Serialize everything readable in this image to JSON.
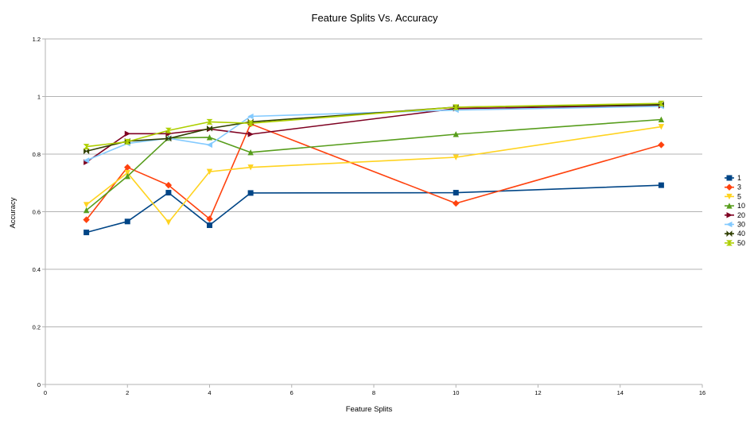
{
  "chart_data": {
    "type": "line",
    "title": "Feature Splits Vs. Accuracy",
    "xlabel": "Feature Splits",
    "ylabel": "Accuracy",
    "xlim": [
      0,
      16
    ],
    "ylim": [
      0,
      1.2
    ],
    "x_ticks": [
      0,
      2,
      4,
      6,
      8,
      10,
      12,
      14,
      16
    ],
    "y_ticks": [
      0,
      0.2,
      0.4,
      0.6,
      0.8,
      1,
      1.2
    ],
    "grid": "horizontal",
    "legend_position": "right",
    "x": [
      1,
      2,
      3,
      4,
      5,
      10,
      15
    ],
    "series": [
      {
        "name": "1",
        "color": "#004586",
        "marker": "square",
        "values": [
          0.528,
          0.566,
          0.666,
          0.553,
          0.665,
          0.666,
          0.692
        ]
      },
      {
        "name": "3",
        "color": "#ff420e",
        "marker": "diamond",
        "values": [
          0.572,
          0.754,
          0.692,
          0.575,
          0.905,
          0.629,
          0.832
        ]
      },
      {
        "name": "5",
        "color": "#ffd320",
        "marker": "triangle-down",
        "values": [
          0.624,
          0.735,
          0.563,
          0.739,
          0.754,
          0.789,
          0.895
        ]
      },
      {
        "name": "10",
        "color": "#579d1c",
        "marker": "triangle-up",
        "values": [
          0.605,
          0.723,
          0.856,
          0.858,
          0.806,
          0.869,
          0.92
        ]
      },
      {
        "name": "20",
        "color": "#7e0021",
        "marker": "triangle-right",
        "values": [
          0.772,
          0.871,
          0.871,
          0.887,
          0.869,
          0.958,
          0.968
        ]
      },
      {
        "name": "30",
        "color": "#83caff",
        "marker": "triangle-left",
        "values": [
          0.778,
          0.837,
          0.855,
          0.832,
          0.931,
          0.953,
          0.966
        ]
      },
      {
        "name": "40",
        "color": "#314004",
        "marker": "bowtie",
        "values": [
          0.81,
          0.845,
          0.854,
          0.889,
          0.912,
          0.963,
          0.972
        ]
      },
      {
        "name": "50",
        "color": "#aecf00",
        "marker": "hourglass",
        "values": [
          0.826,
          0.843,
          0.882,
          0.912,
          0.907,
          0.963,
          0.976
        ]
      }
    ]
  }
}
